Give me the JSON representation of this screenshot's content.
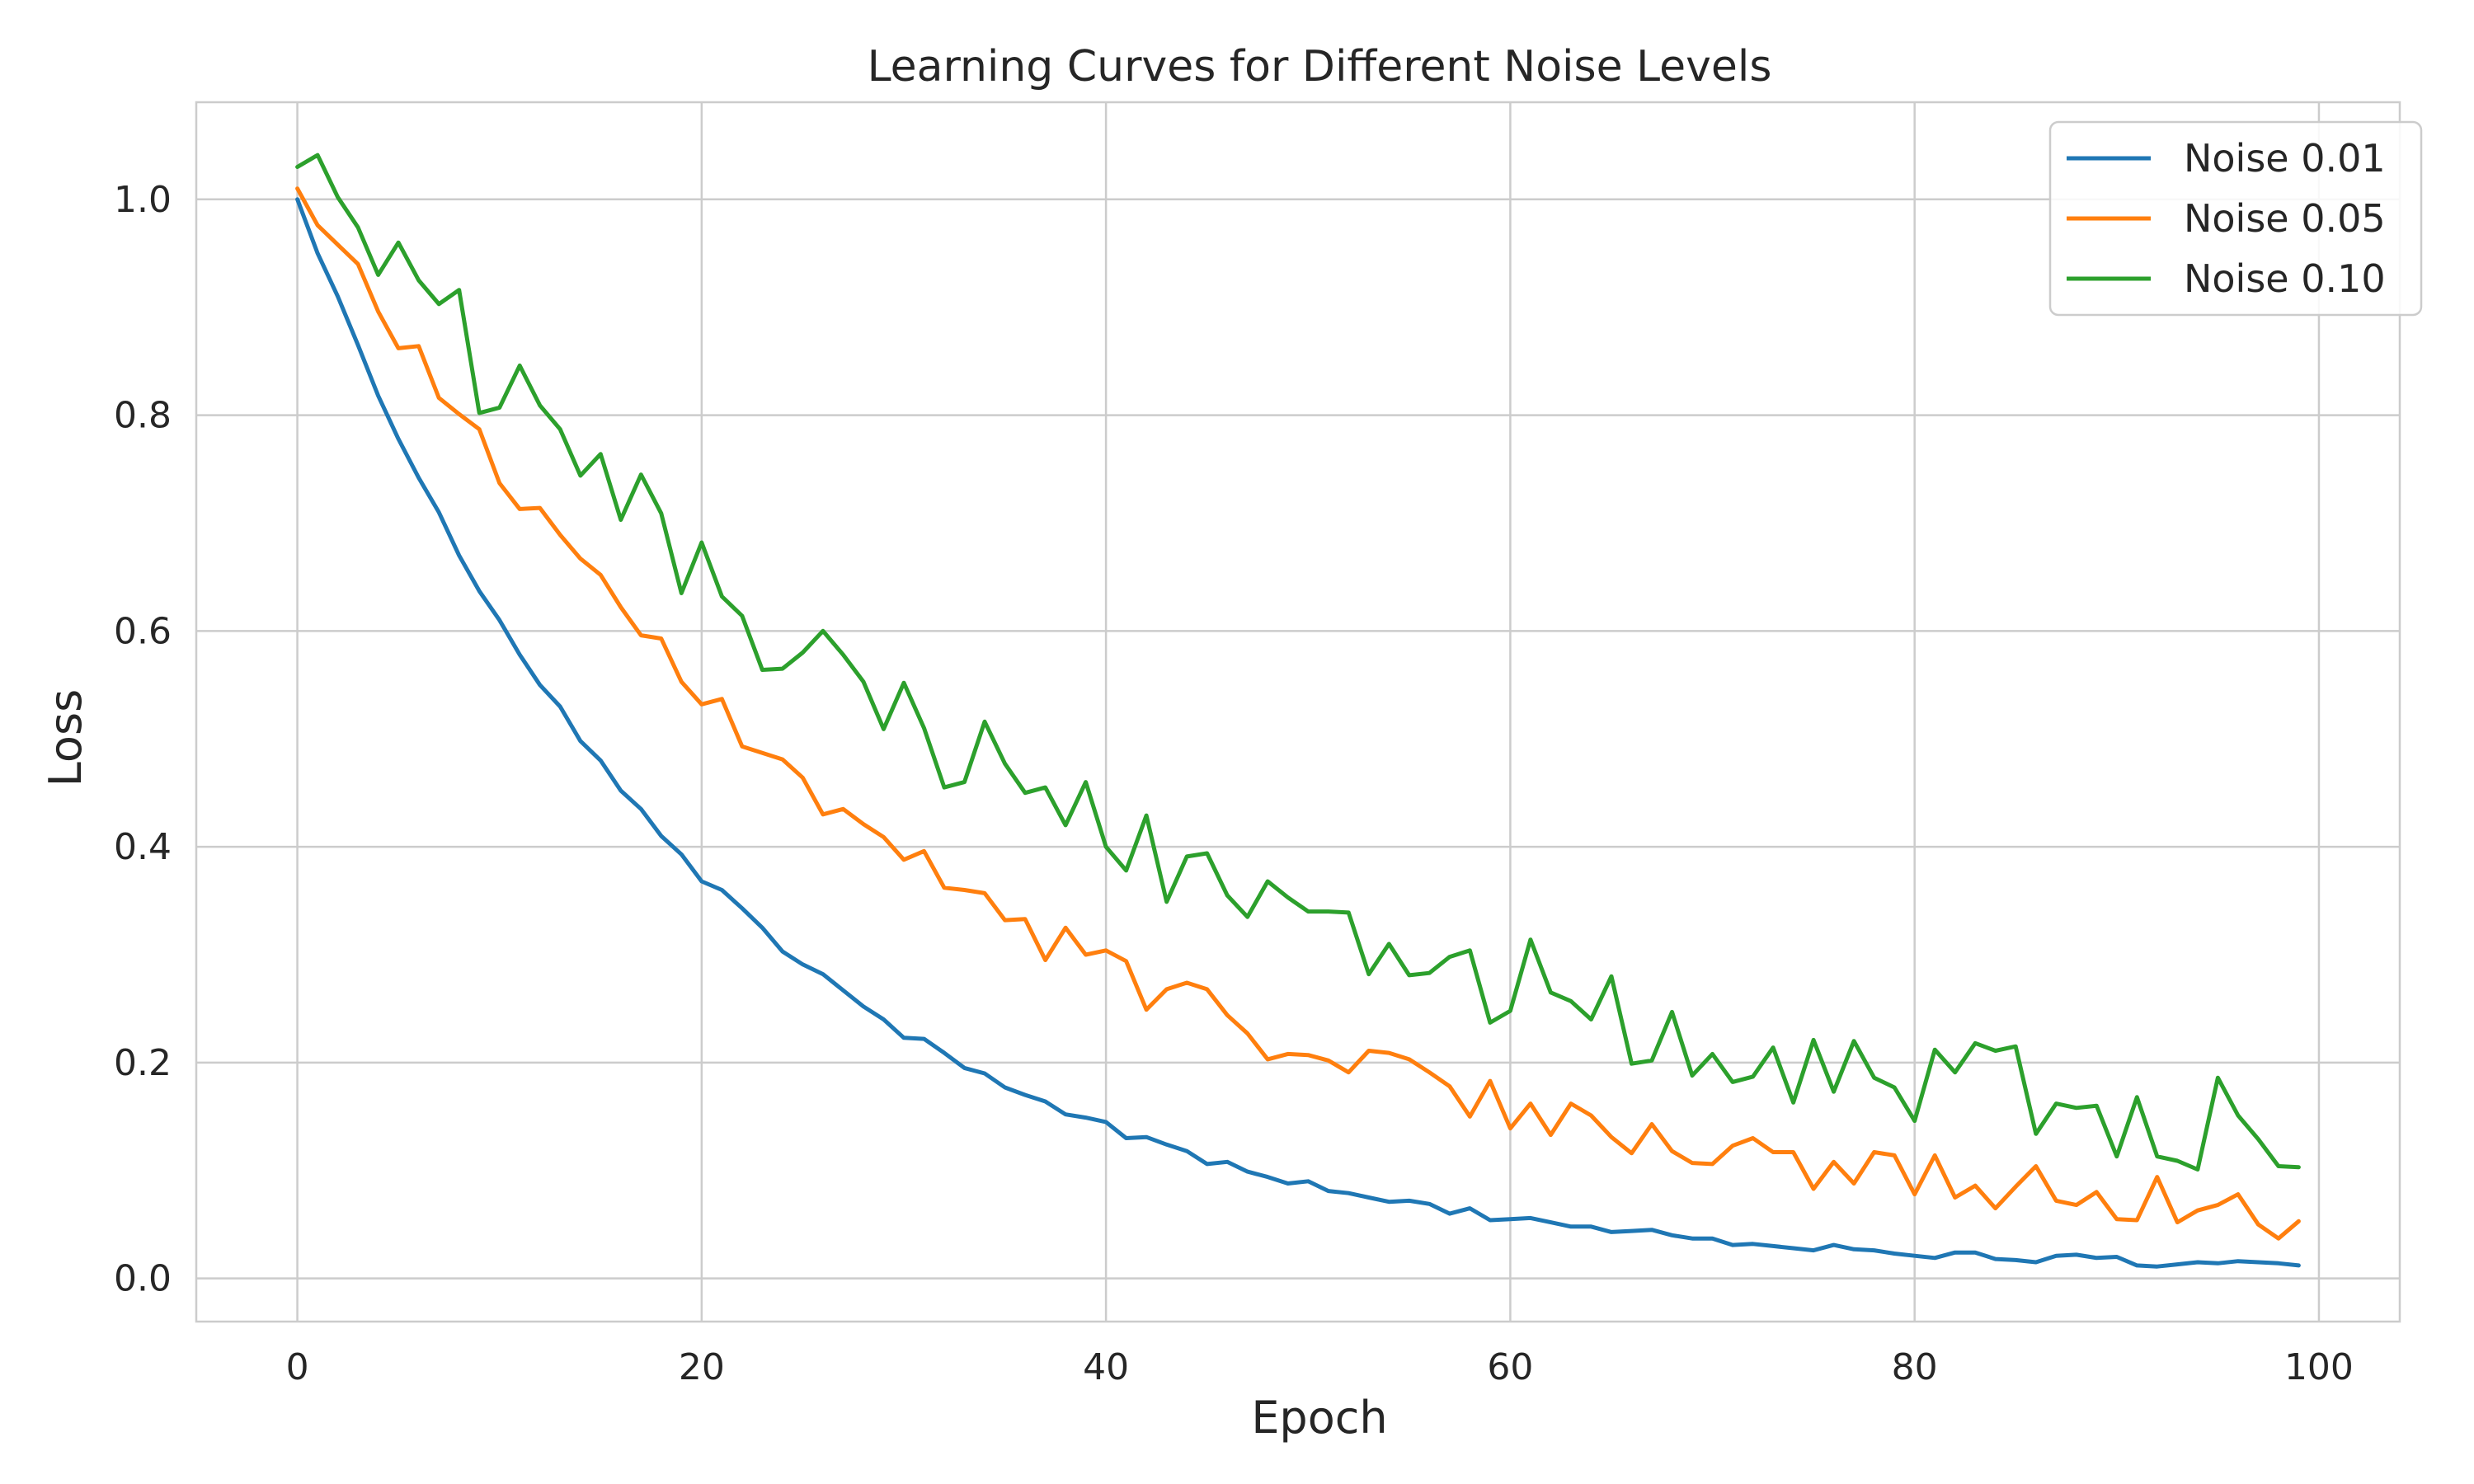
{
  "chart_data": {
    "type": "line",
    "title": "Learning Curves for Different Noise Levels",
    "xlabel": "Epoch",
    "ylabel": "Loss",
    "xlim": [
      -5,
      104
    ],
    "ylim": [
      -0.04,
      1.09
    ],
    "xticks": [
      0,
      20,
      40,
      60,
      80,
      100
    ],
    "xtick_labels": [
      "0",
      "20",
      "40",
      "60",
      "80",
      "100"
    ],
    "yticks": [
      0.0,
      0.2,
      0.4,
      0.6,
      0.8,
      1.0
    ],
    "ytick_labels": [
      "0.0",
      "0.2",
      "0.4",
      "0.6",
      "0.8",
      "1.0"
    ],
    "grid": true,
    "legend_position": "top-right",
    "x": [
      0,
      1,
      2,
      3,
      4,
      5,
      6,
      7,
      8,
      9,
      10,
      11,
      12,
      13,
      14,
      15,
      16,
      17,
      18,
      19,
      20,
      21,
      22,
      23,
      24,
      25,
      26,
      27,
      28,
      29,
      30,
      31,
      32,
      33,
      34,
      35,
      36,
      37,
      38,
      39,
      40,
      41,
      42,
      43,
      44,
      45,
      46,
      47,
      48,
      49,
      50,
      51,
      52,
      53,
      54,
      55,
      56,
      57,
      58,
      59,
      60,
      61,
      62,
      63,
      64,
      65,
      66,
      67,
      68,
      69,
      70,
      71,
      72,
      73,
      74,
      75,
      76,
      77,
      78,
      79,
      80,
      81,
      82,
      83,
      84,
      85,
      86,
      87,
      88,
      89,
      90,
      91,
      92,
      93,
      94,
      95,
      96,
      97,
      98,
      99
    ],
    "series": [
      {
        "name": "Noise 0.01",
        "color": "#1f77b4",
        "values": [
          1.0,
          0.95,
          0.91,
          0.865,
          0.818,
          0.778,
          0.742,
          0.71,
          0.67,
          0.637,
          0.61,
          0.578,
          0.55,
          0.53,
          0.498,
          0.48,
          0.452,
          0.435,
          0.41,
          0.393,
          0.368,
          0.36,
          0.343,
          0.325,
          0.303,
          0.291,
          0.282,
          0.267,
          0.252,
          0.24,
          0.223,
          0.222,
          0.209,
          0.195,
          0.19,
          0.177,
          0.17,
          0.164,
          0.152,
          0.149,
          0.145,
          0.13,
          0.131,
          0.124,
          0.118,
          0.106,
          0.108,
          0.099,
          0.094,
          0.088,
          0.09,
          0.081,
          0.079,
          0.075,
          0.071,
          0.072,
          0.069,
          0.06,
          0.065,
          0.054,
          0.055,
          0.056,
          0.052,
          0.048,
          0.048,
          0.043,
          0.044,
          0.045,
          0.04,
          0.037,
          0.037,
          0.031,
          0.032,
          0.03,
          0.028,
          0.026,
          0.031,
          0.027,
          0.026,
          0.023,
          0.021,
          0.019,
          0.024,
          0.024,
          0.018,
          0.017,
          0.015,
          0.021,
          0.022,
          0.019,
          0.02,
          0.012,
          0.011,
          0.013,
          0.015,
          0.014,
          0.016,
          0.015,
          0.014,
          0.012
        ]
      },
      {
        "name": "Noise 0.05",
        "color": "#ff7f0e",
        "values": [
          1.01,
          0.976,
          0.958,
          0.94,
          0.896,
          0.862,
          0.864,
          0.816,
          0.801,
          0.787,
          0.737,
          0.713,
          0.714,
          0.689,
          0.667,
          0.652,
          0.622,
          0.596,
          0.593,
          0.553,
          0.532,
          0.537,
          0.493,
          0.487,
          0.481,
          0.464,
          0.43,
          0.435,
          0.421,
          0.409,
          0.388,
          0.396,
          0.362,
          0.36,
          0.357,
          0.332,
          0.333,
          0.295,
          0.325,
          0.3,
          0.304,
          0.294,
          0.249,
          0.268,
          0.274,
          0.268,
          0.244,
          0.227,
          0.203,
          0.208,
          0.207,
          0.202,
          0.191,
          0.211,
          0.209,
          0.203,
          0.191,
          0.178,
          0.15,
          0.183,
          0.139,
          0.162,
          0.133,
          0.162,
          0.151,
          0.131,
          0.116,
          0.143,
          0.118,
          0.107,
          0.106,
          0.123,
          0.13,
          0.117,
          0.117,
          0.083,
          0.108,
          0.088,
          0.117,
          0.114,
          0.078,
          0.114,
          0.075,
          0.086,
          0.065,
          0.085,
          0.104,
          0.072,
          0.068,
          0.08,
          0.055,
          0.054,
          0.094,
          0.052,
          0.063,
          0.068,
          0.078,
          0.05,
          0.037,
          0.053
        ]
      },
      {
        "name": "Noise 0.10",
        "color": "#2ca02c",
        "values": [
          1.03,
          1.041,
          1.002,
          0.974,
          0.93,
          0.96,
          0.925,
          0.903,
          0.916,
          0.802,
          0.807,
          0.846,
          0.809,
          0.787,
          0.744,
          0.764,
          0.703,
          0.745,
          0.709,
          0.635,
          0.682,
          0.632,
          0.614,
          0.564,
          0.565,
          0.58,
          0.6,
          0.578,
          0.553,
          0.509,
          0.552,
          0.51,
          0.455,
          0.46,
          0.516,
          0.477,
          0.45,
          0.455,
          0.42,
          0.46,
          0.4,
          0.378,
          0.429,
          0.349,
          0.391,
          0.394,
          0.355,
          0.335,
          0.368,
          0.353,
          0.34,
          0.34,
          0.339,
          0.282,
          0.31,
          0.281,
          0.283,
          0.298,
          0.304,
          0.237,
          0.248,
          0.314,
          0.265,
          0.257,
          0.24,
          0.28,
          0.199,
          0.202,
          0.247,
          0.188,
          0.208,
          0.182,
          0.187,
          0.214,
          0.163,
          0.221,
          0.173,
          0.22,
          0.186,
          0.177,
          0.146,
          0.212,
          0.191,
          0.218,
          0.211,
          0.215,
          0.134,
          0.162,
          0.158,
          0.16,
          0.113,
          0.168,
          0.113,
          0.109,
          0.101,
          0.186,
          0.151,
          0.129,
          0.104,
          0.103
        ]
      }
    ]
  }
}
